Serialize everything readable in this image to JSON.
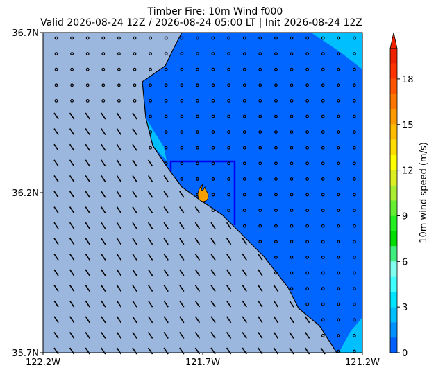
{
  "chart_data": {
    "type": "map",
    "title": "Timber Fire: 10m Wind f000",
    "subtitle": "Valid 2026-08-24 12Z / 2026-08-24 05:00 LT | Init 2026-08-24 12Z",
    "xlim": [
      -122.2,
      -121.2
    ],
    "ylim": [
      35.7,
      36.7
    ],
    "xticks": [
      {
        "value": -122.2,
        "label": "122.2W"
      },
      {
        "value": -121.7,
        "label": "121.7W"
      },
      {
        "value": -121.2,
        "label": "121.2W"
      }
    ],
    "yticks": [
      {
        "value": 35.7,
        "label": "35.7N"
      },
      {
        "value": 36.2,
        "label": "36.2N"
      },
      {
        "value": 36.7,
        "label": "36.7N"
      }
    ],
    "colorbar": {
      "label": "10m wind speed (m/s)",
      "extend": "max",
      "levels": [
        0,
        1,
        2,
        3,
        4,
        5,
        6,
        7,
        8,
        9,
        10,
        11,
        12,
        13,
        14,
        15,
        16,
        17,
        18,
        19,
        20
      ],
      "colors": [
        "#0060ff",
        "#0090ff",
        "#00bfff",
        "#00e5ff",
        "#40ffff",
        "#80ffee",
        "#40ee80",
        "#00dd00",
        "#22ee22",
        "#66ee33",
        "#aaee33",
        "#ddee22",
        "#ffff00",
        "#ffdd00",
        "#ffbb00",
        "#ff9900",
        "#ff7700",
        "#ff5500",
        "#ff3300",
        "#ee2200"
      ],
      "ylim": [
        0,
        20
      ],
      "ticks": [
        0,
        3,
        6,
        9,
        12,
        15,
        18
      ]
    }
  }
}
